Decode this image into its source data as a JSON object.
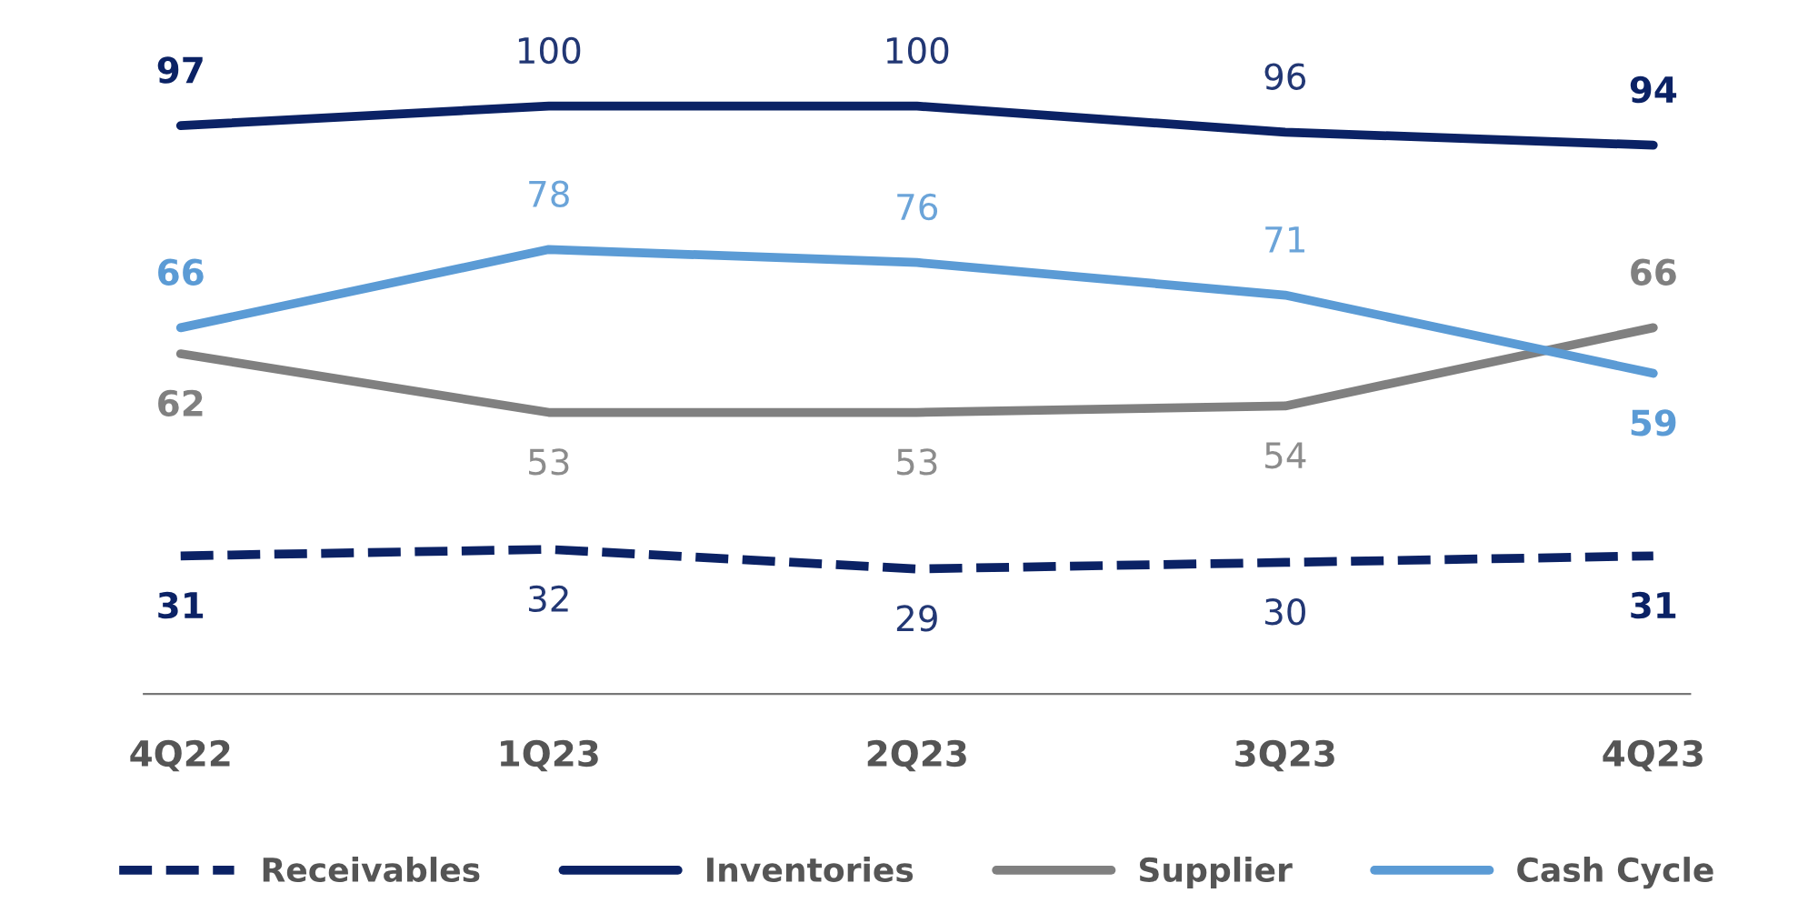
{
  "chart_data": {
    "type": "line",
    "categories": [
      "4Q22",
      "1Q23",
      "2Q23",
      "3Q23",
      "4Q23"
    ],
    "series": [
      {
        "name": "Receivables",
        "color": "#0b2265",
        "values": [
          31,
          32,
          29,
          30,
          31
        ],
        "line_style": "dashed"
      },
      {
        "name": "Inventories",
        "color": "#0b2265",
        "values": [
          97,
          100,
          100,
          96,
          94
        ]
      },
      {
        "name": "Supplier",
        "color": "#808080",
        "values": [
          62,
          53,
          53,
          54,
          66
        ]
      },
      {
        "name": "Cash Cycle",
        "color": "#5b9bd5",
        "values": [
          66,
          78,
          76,
          71,
          59
        ]
      }
    ],
    "data_labels": true,
    "legend": "bottom",
    "grid": false,
    "marker": "none",
    "line_style": "solid"
  }
}
